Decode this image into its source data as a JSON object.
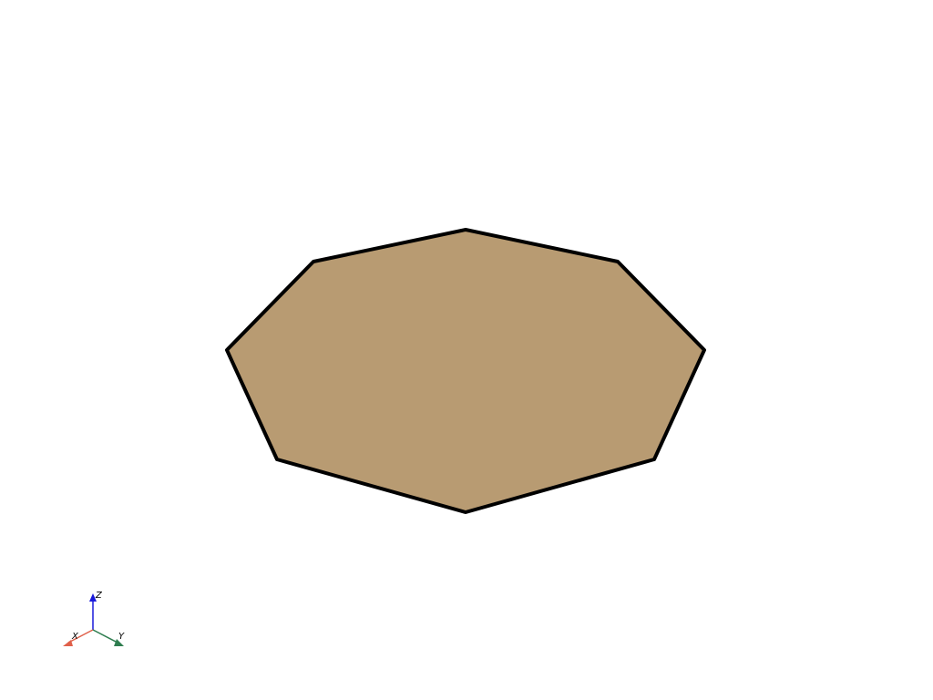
{
  "scene": {
    "background_color": "#ffffff",
    "shape": {
      "type": "octagon",
      "fill_color": "#b89b72",
      "edge_color": "#000000"
    }
  },
  "axes_widget": {
    "x": {
      "label": "X",
      "color": "#e0604a"
    },
    "y": {
      "label": "Y",
      "color": "#2e7d4f"
    },
    "z": {
      "label": "Z",
      "color": "#1a1adb"
    }
  }
}
